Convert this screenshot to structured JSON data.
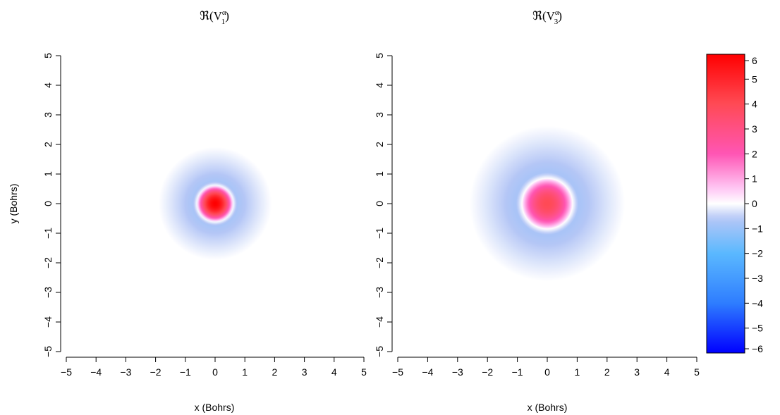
{
  "chart_data": [
    {
      "type": "heatmap",
      "title": "ℜ(V",
      "title_sup": "α",
      "title_sub": "1",
      "title_end": ")",
      "xlabel": "x (Bohrs)",
      "ylabel": "y (Bohrs)",
      "xlim": [
        -5,
        5
      ],
      "ylim": [
        -5,
        5
      ],
      "x_ticks": [
        "−5",
        "−4",
        "−3",
        "−2",
        "−1",
        "0",
        "1",
        "2",
        "3",
        "4",
        "5"
      ],
      "y_ticks": [
        "−5",
        "−4",
        "−3",
        "−2",
        "−1",
        "0",
        "1",
        "2",
        "3",
        "4",
        "5"
      ],
      "field": {
        "shape": "radial",
        "center": [
          0,
          0
        ],
        "value_at_center": 6.0,
        "zero_crossing_radius": 0.6,
        "min_value": -0.8,
        "min_radius": 0.75,
        "extent_radius": 1.9
      }
    },
    {
      "type": "heatmap",
      "title": "ℜ(V",
      "title_sup": "α",
      "title_sub": "3",
      "title_end": ")",
      "xlabel": "x (Bohrs)",
      "ylabel": "",
      "xlim": [
        -5,
        5
      ],
      "ylim": [
        -5,
        5
      ],
      "x_ticks": [
        "−5",
        "−4",
        "−3",
        "−2",
        "−1",
        "0",
        "1",
        "2",
        "3",
        "4",
        "5"
      ],
      "y_ticks": [
        "−5",
        "−4",
        "−3",
        "−2",
        "−1",
        "0",
        "1",
        "2",
        "3",
        "4",
        "5"
      ],
      "field": {
        "shape": "radial",
        "center": [
          0,
          0
        ],
        "value_at_center": 4.0,
        "zero_crossing_radius": 0.85,
        "min_value": -0.8,
        "min_radius": 1.05,
        "extent_radius": 2.6
      }
    }
  ],
  "colorbar": {
    "min": -6,
    "max": 6,
    "ticks": [
      "6",
      "5",
      "4",
      "3",
      "2",
      "1",
      "0",
      "−1",
      "−2",
      "−3",
      "−4",
      "−5",
      "−6"
    ],
    "stops": [
      {
        "value": -6,
        "color": "#0000ff"
      },
      {
        "value": -4,
        "color": "#2e7dff"
      },
      {
        "value": -2,
        "color": "#5ab8ff"
      },
      {
        "value": -0.6,
        "color": "#b4c6f6"
      },
      {
        "value": 0,
        "color": "#ffffff"
      },
      {
        "value": 0.6,
        "color": "#ffc8f5"
      },
      {
        "value": 2,
        "color": "#ff55b4"
      },
      {
        "value": 4,
        "color": "#ff4a55"
      },
      {
        "value": 6,
        "color": "#ff0000"
      }
    ]
  }
}
